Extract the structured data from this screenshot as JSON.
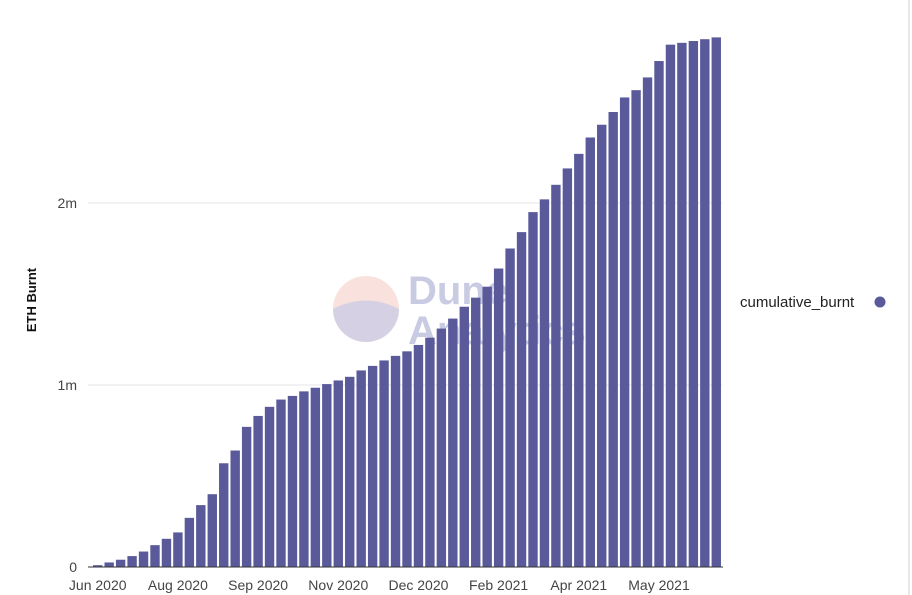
{
  "chart_data": {
    "type": "bar",
    "title": "",
    "xlabel": "",
    "ylabel": "ETH Burnt",
    "ylim": [
      0,
      3000000
    ],
    "y_ticks": [
      {
        "value": 0,
        "label": "0"
      },
      {
        "value": 1000000,
        "label": "1m"
      },
      {
        "value": 2000000,
        "label": "2m"
      }
    ],
    "x_ticks": [
      {
        "index": 0,
        "label": "Jun 2020"
      },
      {
        "index": 7,
        "label": "Aug 2020"
      },
      {
        "index": 14,
        "label": "Sep 2020"
      },
      {
        "index": 21,
        "label": "Nov 2020"
      },
      {
        "index": 28,
        "label": "Dec 2020"
      },
      {
        "index": 35,
        "label": "Feb 2021"
      },
      {
        "index": 42,
        "label": "Apr 2021"
      },
      {
        "index": 49,
        "label": "May 2021"
      }
    ],
    "grid": true,
    "legend_position": "right",
    "series": [
      {
        "name": "cumulative_burnt",
        "color": "#5a5a9b",
        "values": [
          10000,
          25000,
          40000,
          60000,
          85000,
          120000,
          155000,
          190000,
          270000,
          340000,
          400000,
          570000,
          640000,
          770000,
          830000,
          880000,
          920000,
          940000,
          965000,
          985000,
          1005000,
          1025000,
          1045000,
          1080000,
          1105000,
          1135000,
          1160000,
          1185000,
          1220000,
          1260000,
          1310000,
          1365000,
          1430000,
          1480000,
          1540000,
          1640000,
          1750000,
          1840000,
          1950000,
          2020000,
          2100000,
          2190000,
          2270000,
          2360000,
          2430000,
          2500000,
          2580000,
          2620000,
          2690000,
          2780000,
          2870000,
          2880000,
          2890000,
          2900000,
          2910000
        ]
      }
    ]
  },
  "watermark": {
    "line1": "Dune",
    "line2": "Analytics"
  }
}
